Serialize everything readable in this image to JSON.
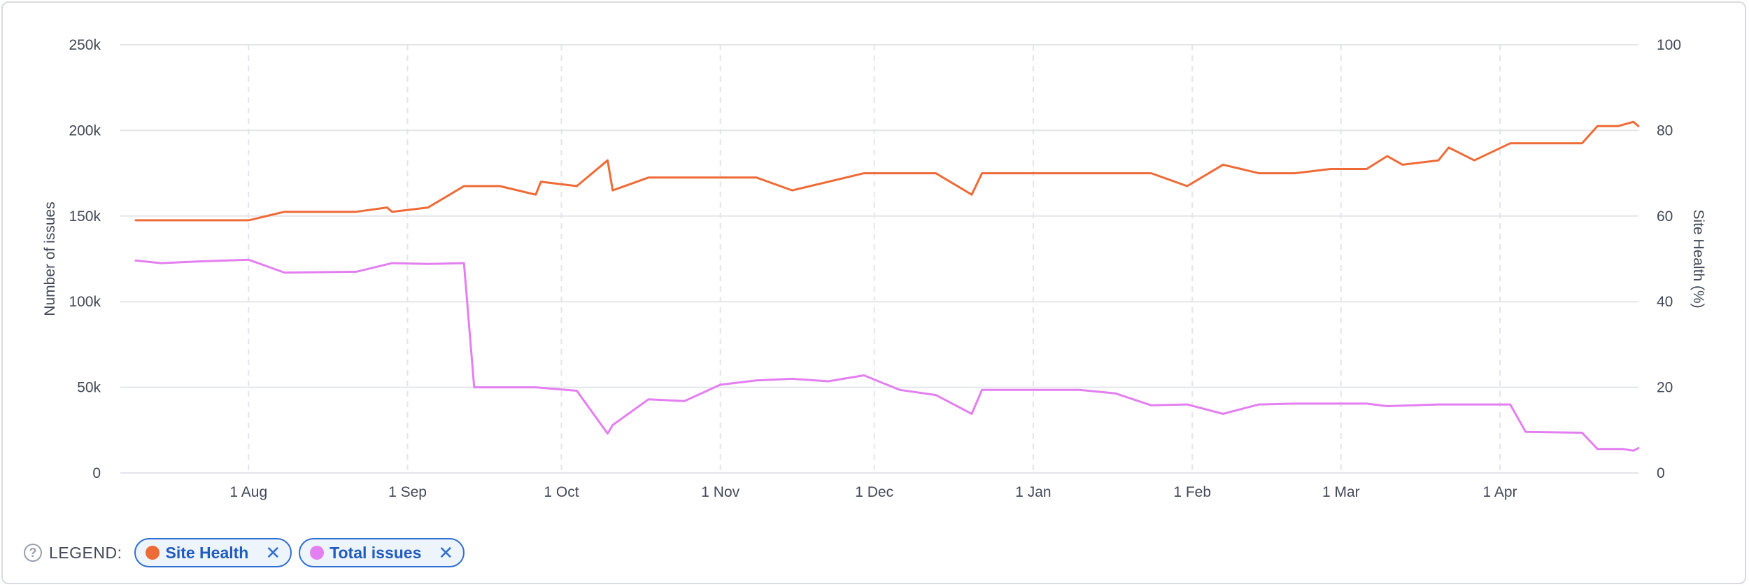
{
  "chart_data": {
    "type": "line",
    "ylabel_left": "Number of issues",
    "ylabel_right": "Site Health (%)",
    "ylim_left": [
      0,
      250000
    ],
    "ylim_right": [
      0,
      100
    ],
    "yticks_left": [
      "0",
      "50k",
      "100k",
      "150k",
      "200k",
      "250k"
    ],
    "yticks_right": [
      "0",
      "20",
      "40",
      "60",
      "80",
      "100"
    ],
    "x_range": [
      "2023-07-07",
      "2024-04-28"
    ],
    "xticks": [
      {
        "label": "1 Aug",
        "date": "2023-08-01"
      },
      {
        "label": "1 Sep",
        "date": "2023-09-01"
      },
      {
        "label": "1 Oct",
        "date": "2023-10-01"
      },
      {
        "label": "1 Nov",
        "date": "2023-11-01"
      },
      {
        "label": "1 Dec",
        "date": "2023-12-01"
      },
      {
        "label": "1 Jan",
        "date": "2024-01-01"
      },
      {
        "label": "1 Feb",
        "date": "2024-02-01"
      },
      {
        "label": "1 Mar",
        "date": "2024-03-01"
      },
      {
        "label": "1 Apr",
        "date": "2024-04-01"
      }
    ],
    "grid": true,
    "legend_position": "bottom-left",
    "series": [
      {
        "name": "Site Health",
        "axis": "right",
        "color": "#ee6a36",
        "points": [
          [
            "2023-07-10",
            59
          ],
          [
            "2023-08-01",
            59
          ],
          [
            "2023-08-08",
            61
          ],
          [
            "2023-08-22",
            61
          ],
          [
            "2023-08-28",
            62
          ],
          [
            "2023-08-29",
            61
          ],
          [
            "2023-09-05",
            62
          ],
          [
            "2023-09-12",
            67
          ],
          [
            "2023-09-19",
            67
          ],
          [
            "2023-09-26",
            65
          ],
          [
            "2023-09-27",
            68
          ],
          [
            "2023-10-04",
            67
          ],
          [
            "2023-10-10",
            73
          ],
          [
            "2023-10-11",
            66
          ],
          [
            "2023-10-18",
            69
          ],
          [
            "2023-11-08",
            69
          ],
          [
            "2023-11-15",
            66
          ],
          [
            "2023-11-29",
            70
          ],
          [
            "2023-12-13",
            70
          ],
          [
            "2023-12-20",
            65
          ],
          [
            "2023-12-22",
            70
          ],
          [
            "2024-01-24",
            70
          ],
          [
            "2024-01-31",
            67
          ],
          [
            "2024-02-07",
            72
          ],
          [
            "2024-02-14",
            70
          ],
          [
            "2024-02-21",
            70
          ],
          [
            "2024-02-28",
            71
          ],
          [
            "2024-03-06",
            71
          ],
          [
            "2024-03-10",
            74
          ],
          [
            "2024-03-13",
            72
          ],
          [
            "2024-03-20",
            73
          ],
          [
            "2024-03-22",
            76
          ],
          [
            "2024-03-27",
            73
          ],
          [
            "2024-04-03",
            77
          ],
          [
            "2024-04-17",
            77
          ],
          [
            "2024-04-20",
            81
          ],
          [
            "2024-04-24",
            81
          ],
          [
            "2024-04-27",
            82
          ],
          [
            "2024-04-28",
            81
          ]
        ]
      },
      {
        "name": "Total issues",
        "axis": "left",
        "color": "#e37ff0",
        "points": [
          [
            "2023-07-10",
            124000
          ],
          [
            "2023-07-15",
            122500
          ],
          [
            "2023-07-22",
            123500
          ],
          [
            "2023-08-01",
            124500
          ],
          [
            "2023-08-08",
            117000
          ],
          [
            "2023-08-22",
            117500
          ],
          [
            "2023-08-29",
            122500
          ],
          [
            "2023-09-05",
            122000
          ],
          [
            "2023-09-12",
            122500
          ],
          [
            "2023-09-14",
            50000
          ],
          [
            "2023-09-26",
            50000
          ],
          [
            "2023-10-04",
            48000
          ],
          [
            "2023-10-10",
            23000
          ],
          [
            "2023-10-11",
            28000
          ],
          [
            "2023-10-18",
            43000
          ],
          [
            "2023-10-25",
            42000
          ],
          [
            "2023-11-01",
            51500
          ],
          [
            "2023-11-08",
            54000
          ],
          [
            "2023-11-15",
            55000
          ],
          [
            "2023-11-22",
            53500
          ],
          [
            "2023-11-29",
            57000
          ],
          [
            "2023-12-06",
            48500
          ],
          [
            "2023-12-13",
            45500
          ],
          [
            "2023-12-20",
            34500
          ],
          [
            "2023-12-22",
            48500
          ],
          [
            "2024-01-10",
            48500
          ],
          [
            "2024-01-17",
            46500
          ],
          [
            "2024-01-24",
            39500
          ],
          [
            "2024-01-31",
            40000
          ],
          [
            "2024-02-07",
            34500
          ],
          [
            "2024-02-14",
            40000
          ],
          [
            "2024-02-21",
            40500
          ],
          [
            "2024-03-06",
            40500
          ],
          [
            "2024-03-10",
            39000
          ],
          [
            "2024-03-20",
            40000
          ],
          [
            "2024-04-03",
            40000
          ],
          [
            "2024-04-06",
            24000
          ],
          [
            "2024-04-17",
            23500
          ],
          [
            "2024-04-20",
            14000
          ],
          [
            "2024-04-25",
            14000
          ],
          [
            "2024-04-27",
            13000
          ],
          [
            "2024-04-28",
            14500
          ]
        ]
      }
    ]
  },
  "legend": {
    "title": "LEGEND:",
    "help_symbol": "?",
    "items": [
      {
        "label": "Site Health",
        "color": "#ee6a36",
        "remove_symbol": "✕"
      },
      {
        "label": "Total issues",
        "color": "#e37ff0",
        "remove_symbol": "✕"
      }
    ]
  }
}
